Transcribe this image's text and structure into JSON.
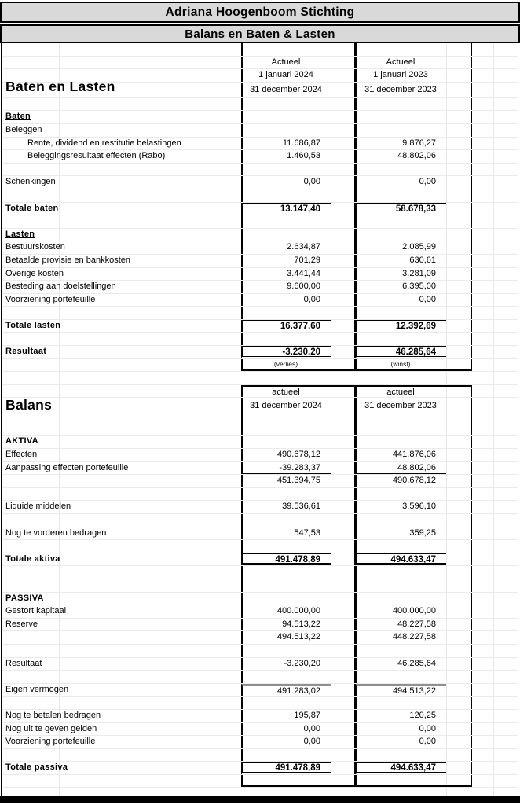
{
  "titles": {
    "main": "Adriana Hoogenboom Stichting",
    "sub": "Balans en Baten & Lasten"
  },
  "colors": {
    "title_bg": "#d9d9d9",
    "border": "#000000",
    "gridline": "#ebebeb",
    "gray_rule": "#909090"
  },
  "sections": [
    {
      "name": "baten-en-lasten",
      "boxed": true,
      "box_top": false,
      "box_bottom": true,
      "rows": [
        {
          "label": "",
          "v1": "",
          "v2": "",
          "f": ""
        },
        {
          "label": "",
          "v1": "Actueel",
          "v2": "Actueel",
          "f": "hdr"
        },
        {
          "label": "",
          "v1": "1 januari 2024",
          "v2": "1 januari 2023",
          "f": "hdr"
        },
        {
          "label": "Baten en Lasten",
          "v1": "31 december 2024",
          "v2": "31 december 2023",
          "f": "hdr big tall"
        },
        {
          "label": "",
          "v1": "",
          "v2": "",
          "f": ""
        },
        {
          "label": "Baten",
          "v1": "",
          "v2": "",
          "f": "u"
        },
        {
          "label": "Beleggen",
          "v1": "",
          "v2": "",
          "f": ""
        },
        {
          "label": "Rente, dividend en restitutie belastingen",
          "v1": "11.686,87",
          "v2": "9.876,27",
          "f": "ind"
        },
        {
          "label": "Beleggingsresultaat effecten (Rabo)",
          "v1": "1.460,53",
          "v2": "48.802,06",
          "f": "ind"
        },
        {
          "label": "",
          "v1": "",
          "v2": "",
          "f": ""
        },
        {
          "label": "Schenkingen",
          "v1": "0,00",
          "v2": "0,00",
          "f": ""
        },
        {
          "label": "",
          "v1": "",
          "v2": "",
          "f": ""
        },
        {
          "label": "Totale baten",
          "v1": "13.147,40",
          "v2": "58.678,33",
          "f": "b bt"
        },
        {
          "label": "",
          "v1": "",
          "v2": "",
          "f": ""
        },
        {
          "label": "Lasten",
          "v1": "",
          "v2": "",
          "f": "u"
        },
        {
          "label": "Bestuurskosten",
          "v1": "2.634,87",
          "v2": "2.085,99",
          "f": ""
        },
        {
          "label": "Betaalde provisie en bankkosten",
          "v1": "701,29",
          "v2": "630,61",
          "f": ""
        },
        {
          "label": "Overige kosten",
          "v1": "3.441,44",
          "v2": "3.281,09",
          "f": ""
        },
        {
          "label": "Besteding aan doelstellingen",
          "v1": "9.600,00",
          "v2": "6.395,00",
          "f": ""
        },
        {
          "label": "Voorziening portefeuille",
          "v1": "0,00",
          "v2": "0,00",
          "f": ""
        },
        {
          "label": "",
          "v1": "",
          "v2": "",
          "f": ""
        },
        {
          "label": "Totale lasten",
          "v1": "16.377,60",
          "v2": "12.392,69",
          "f": "b bt"
        },
        {
          "label": "",
          "v1": "",
          "v2": "",
          "f": ""
        },
        {
          "label": "Resultaat",
          "v1": "-3.230,20",
          "v2": "46.285,64",
          "f": "b bt db"
        },
        {
          "label": "",
          "v1": "(verlies)",
          "v2": "(winst)",
          "f": "sm"
        }
      ]
    },
    {
      "name": "gap",
      "boxed": false,
      "box_top": false,
      "box_bottom": false,
      "rows": [
        {
          "label": "",
          "v1": "",
          "v2": "",
          "f": ""
        }
      ]
    },
    {
      "name": "balans",
      "boxed": true,
      "box_top": true,
      "box_bottom": true,
      "rows": [
        {
          "label": "",
          "v1": "actueel",
          "v2": "actueel",
          "f": "hdr"
        },
        {
          "label": "Balans",
          "v1": "31 december 2024",
          "v2": "31 december 2023",
          "f": "hdr big2 xtall"
        },
        {
          "label": "",
          "v1": "",
          "v2": "",
          "f": "short"
        },
        {
          "label": "",
          "v1": "",
          "v2": "",
          "f": "short"
        },
        {
          "label": "AKTIVA",
          "v1": "",
          "v2": "",
          "f": "b"
        },
        {
          "label": "Effecten",
          "v1": "490.678,12",
          "v2": "441.876,06",
          "f": ""
        },
        {
          "label": "Aanpassing effecten portefeuille",
          "v1": "-39.283,37",
          "v2": "48.802,06",
          "f": "bb"
        },
        {
          "label": "",
          "v1": "451.394,75",
          "v2": "490.678,12",
          "f": ""
        },
        {
          "label": "",
          "v1": "",
          "v2": "",
          "f": ""
        },
        {
          "label": "Liquide middelen",
          "v1": "39.536,61",
          "v2": "3.596,10",
          "f": ""
        },
        {
          "label": "",
          "v1": "",
          "v2": "",
          "f": ""
        },
        {
          "label": "Nog te vorderen bedragen",
          "v1": "547,53",
          "v2": "359,25",
          "f": ""
        },
        {
          "label": "",
          "v1": "",
          "v2": "",
          "f": ""
        },
        {
          "label": "Totale aktiva",
          "v1": "491.478,89",
          "v2": "494.633,47",
          "f": "b bt db"
        },
        {
          "label": "",
          "v1": "",
          "v2": "",
          "f": ""
        },
        {
          "label": "",
          "v1": "",
          "v2": "",
          "f": ""
        },
        {
          "label": "PASSIVA",
          "v1": "",
          "v2": "",
          "f": "b"
        },
        {
          "label": "Gestort kapitaal",
          "v1": "400.000,00",
          "v2": "400.000,00",
          "f": ""
        },
        {
          "label": "Reserve",
          "v1": "94.513,22",
          "v2": "48.227,58",
          "f": "bb"
        },
        {
          "label": "",
          "v1": "494.513,22",
          "v2": "448.227,58",
          "f": ""
        },
        {
          "label": "",
          "v1": "",
          "v2": "",
          "f": ""
        },
        {
          "label": "Resultaat",
          "v1": "-3.230,20",
          "v2": "46.285,64",
          "f": ""
        },
        {
          "label": "",
          "v1": "",
          "v2": "",
          "f": ""
        },
        {
          "label": "Eigen vermogen",
          "v1": "491.283,02",
          "v2": "494.513,22",
          "f": "gt"
        },
        {
          "label": "",
          "v1": "",
          "v2": "",
          "f": ""
        },
        {
          "label": "Nog te betalen bedragen",
          "v1": "195,87",
          "v2": "120,25",
          "f": ""
        },
        {
          "label": "Nog uit te geven gelden",
          "v1": "0,00",
          "v2": "0,00",
          "f": ""
        },
        {
          "label": "Voorziening portefeuille",
          "v1": "0,00",
          "v2": "0,00",
          "f": ""
        },
        {
          "label": "",
          "v1": "",
          "v2": "",
          "f": ""
        },
        {
          "label": "Totale passiva",
          "v1": "491.478,89",
          "v2": "494.633,47",
          "f": "b bt db"
        },
        {
          "label": "",
          "v1": "",
          "v2": "",
          "f": ""
        }
      ]
    },
    {
      "name": "tail",
      "boxed": false,
      "box_top": false,
      "box_bottom": false,
      "rows": [
        {
          "label": "",
          "v1": "",
          "v2": "",
          "f": "tiny"
        }
      ]
    }
  ]
}
